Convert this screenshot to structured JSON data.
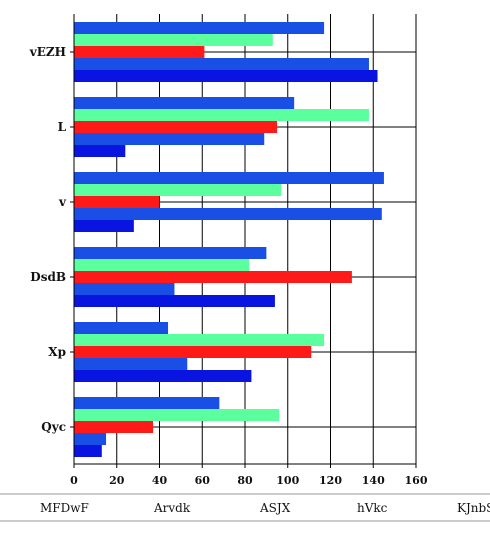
{
  "chart_data": {
    "type": "bar",
    "orientation": "horizontal",
    "categories": [
      "vEZH",
      "L",
      "v",
      "DsdB",
      "Xp",
      "Qyc"
    ],
    "series": [
      {
        "name": "MFDwF",
        "color": "#1a4fe6",
        "values": [
          117,
          103,
          145,
          90,
          44,
          68
        ]
      },
      {
        "name": "Arvdk",
        "color": "#5cff9d",
        "values": [
          93,
          138,
          97,
          82,
          117,
          96
        ]
      },
      {
        "name": "ASJX",
        "color": "#ff1a1a",
        "values": [
          61,
          95,
          40,
          130,
          111,
          37
        ]
      },
      {
        "name": "hVkc",
        "color": "#1a4fe6",
        "values": [
          138,
          89,
          144,
          47,
          53,
          15
        ]
      },
      {
        "name": "KJnbS",
        "color": "#0a14e0",
        "values": [
          142,
          24,
          28,
          94,
          83,
          13
        ]
      }
    ],
    "xticks": [
      "0",
      "20",
      "40",
      "60",
      "80",
      "100",
      "120",
      "140",
      "160"
    ],
    "xlim": [
      0,
      160
    ],
    "grid": true,
    "legend": "bottom"
  }
}
